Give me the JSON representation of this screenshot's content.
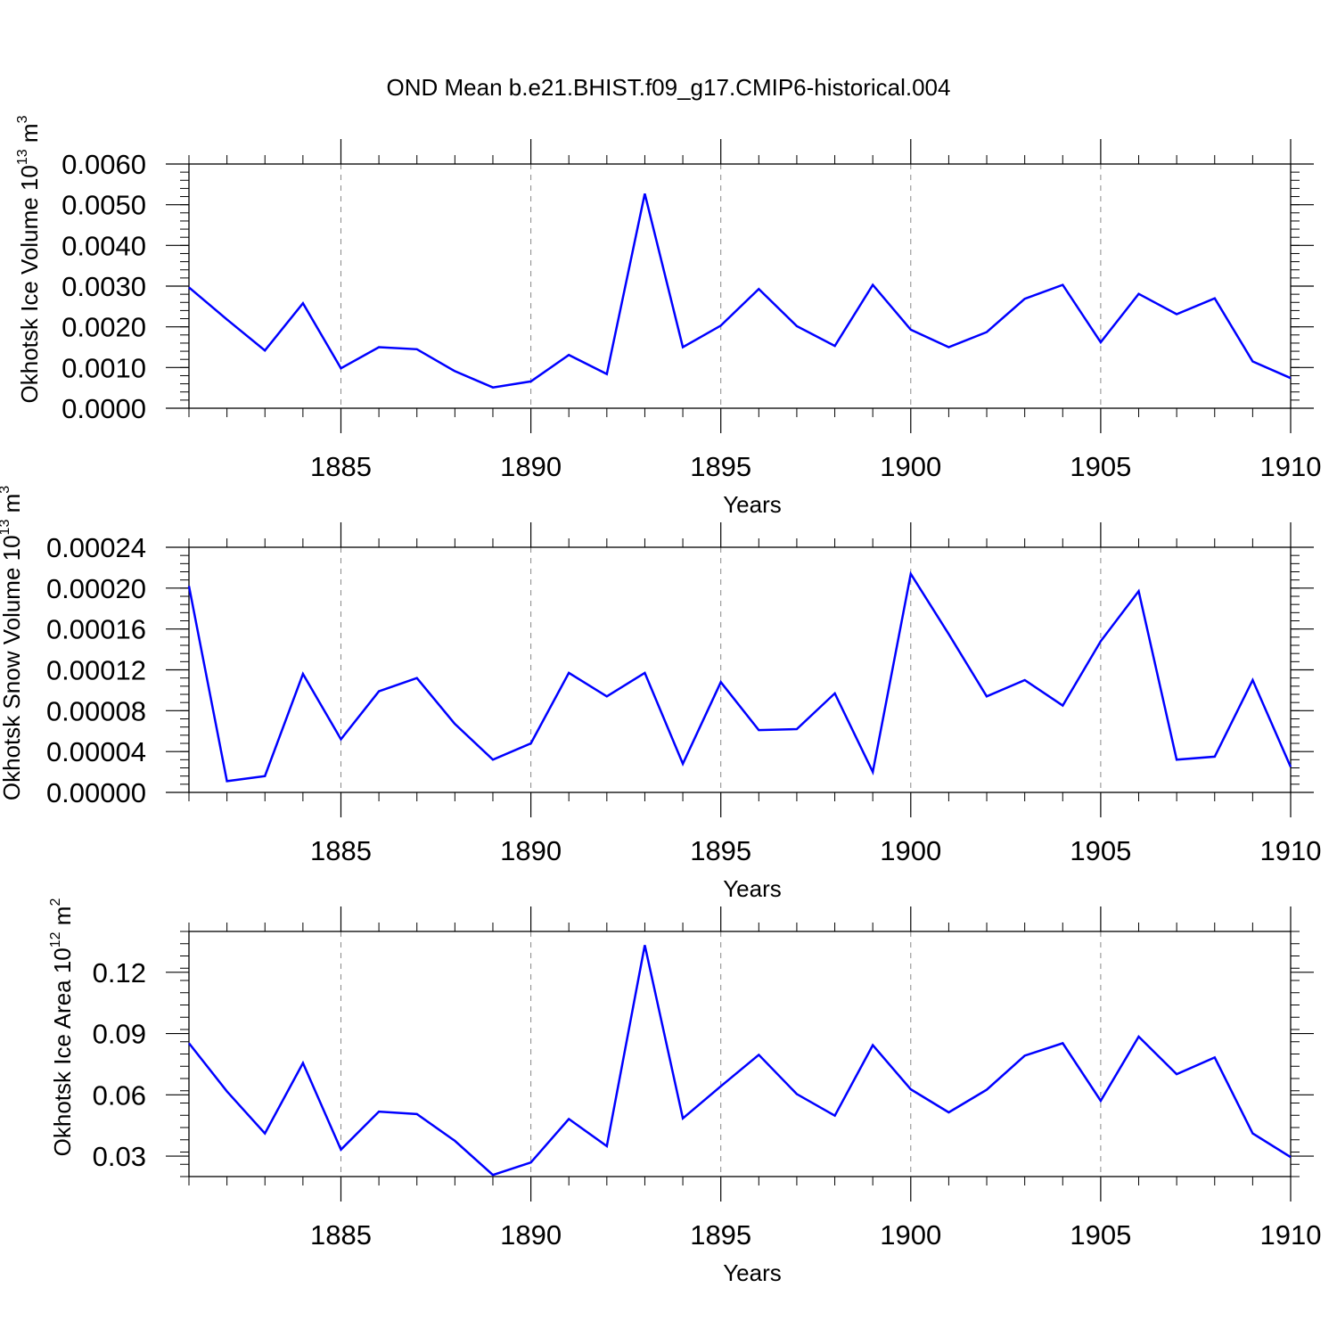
{
  "title": "OND Mean b.e21.BHIST.f09_g17.CMIP6-historical.004",
  "line_color": "#0000ff",
  "chart_data": [
    {
      "type": "line",
      "ylabel": "Okhotsk Ice Volume",
      "yunit_base": "10",
      "yunit_exp": "13",
      "yunit_sym": "m",
      "yunit_sym_exp": "3",
      "xlabel": "Years",
      "xlim": [
        1881,
        1910
      ],
      "ylim": [
        0,
        0.006
      ],
      "x_ticks": [
        "1885",
        "1890",
        "1895",
        "1900",
        "1905",
        "1910"
      ],
      "y_ticks": [
        "0.0000",
        "0.0010",
        "0.0020",
        "0.0030",
        "0.0040",
        "0.0050",
        "0.0060"
      ],
      "y_tick_values": [
        0,
        0.001,
        0.002,
        0.003,
        0.004,
        0.005,
        0.006
      ],
      "x": [
        1881,
        1882,
        1883,
        1884,
        1885,
        1886,
        1887,
        1888,
        1889,
        1890,
        1891,
        1892,
        1893,
        1894,
        1895,
        1896,
        1897,
        1898,
        1899,
        1900,
        1901,
        1902,
        1903,
        1904,
        1905,
        1906,
        1907,
        1908,
        1909,
        1910
      ],
      "values": [
        0.00297,
        0.00218,
        0.00142,
        0.00258,
        0.00098,
        0.0015,
        0.00145,
        0.00091,
        0.00051,
        0.00066,
        0.00131,
        0.00084,
        0.00527,
        0.0015,
        0.00203,
        0.00293,
        0.00202,
        0.00153,
        0.00303,
        0.00193,
        0.0015,
        0.00187,
        0.00269,
        0.00303,
        0.00162,
        0.00281,
        0.00231,
        0.0027,
        0.00115,
        0.00074
      ]
    },
    {
      "type": "line",
      "ylabel": "Okhotsk Snow Volume",
      "yunit_base": "10",
      "yunit_exp": "13",
      "yunit_sym": "m",
      "yunit_sym_exp": "3",
      "xlabel": "Years",
      "xlim": [
        1881,
        1910
      ],
      "ylim": [
        0,
        0.00024
      ],
      "x_ticks": [
        "1885",
        "1890",
        "1895",
        "1900",
        "1905",
        "1910"
      ],
      "y_ticks": [
        "0.00000",
        "0.00004",
        "0.00008",
        "0.00012",
        "0.00016",
        "0.00020",
        "0.00024"
      ],
      "y_tick_values": [
        0,
        4e-05,
        8e-05,
        0.00012,
        0.00016,
        0.0002,
        0.00024
      ],
      "x": [
        1881,
        1882,
        1883,
        1884,
        1885,
        1886,
        1887,
        1888,
        1889,
        1890,
        1891,
        1892,
        1893,
        1894,
        1895,
        1896,
        1897,
        1898,
        1899,
        1900,
        1901,
        1902,
        1903,
        1904,
        1905,
        1906,
        1907,
        1908,
        1909,
        1910
      ],
      "values": [
        0.000202,
        1.1e-05,
        1.6e-05,
        0.000116,
        5.2e-05,
        9.9e-05,
        0.000112,
        6.7e-05,
        3.2e-05,
        4.8e-05,
        0.000117,
        9.4e-05,
        0.000117,
        2.8e-05,
        0.000108,
        6.1e-05,
        6.2e-05,
        9.7e-05,
        2e-05,
        0.000214,
        0.000155,
        9.4e-05,
        0.00011,
        8.5e-05,
        0.000148,
        0.000197,
        3.2e-05,
        3.5e-05,
        0.00011,
        2.5e-05
      ]
    },
    {
      "type": "line",
      "ylabel": "Okhotsk Ice Area",
      "yunit_base": "10",
      "yunit_exp": "12",
      "yunit_sym": "m",
      "yunit_sym_exp": "2",
      "xlabel": "Years",
      "xlim": [
        1881,
        1910
      ],
      "ylim": [
        0.02,
        0.14
      ],
      "x_ticks": [
        "1885",
        "1890",
        "1895",
        "1900",
        "1905",
        "1910"
      ],
      "y_ticks": [
        "0.03",
        "0.06",
        "0.09",
        "0.12"
      ],
      "y_tick_values": [
        0.03,
        0.06,
        0.09,
        0.12
      ],
      "x": [
        1881,
        1882,
        1883,
        1884,
        1885,
        1886,
        1887,
        1888,
        1889,
        1890,
        1891,
        1892,
        1893,
        1894,
        1895,
        1896,
        1897,
        1898,
        1899,
        1900,
        1901,
        1902,
        1903,
        1904,
        1905,
        1906,
        1907,
        1908,
        1909,
        1910
      ],
      "values": [
        0.0853,
        0.0617,
        0.0411,
        0.0756,
        0.0332,
        0.0518,
        0.0506,
        0.0375,
        0.0208,
        0.0269,
        0.0482,
        0.0349,
        0.1333,
        0.0485,
        0.0642,
        0.0796,
        0.0604,
        0.0498,
        0.0843,
        0.0627,
        0.0514,
        0.0625,
        0.0792,
        0.0853,
        0.0571,
        0.0885,
        0.0701,
        0.0783,
        0.0411,
        0.0295
      ]
    }
  ]
}
